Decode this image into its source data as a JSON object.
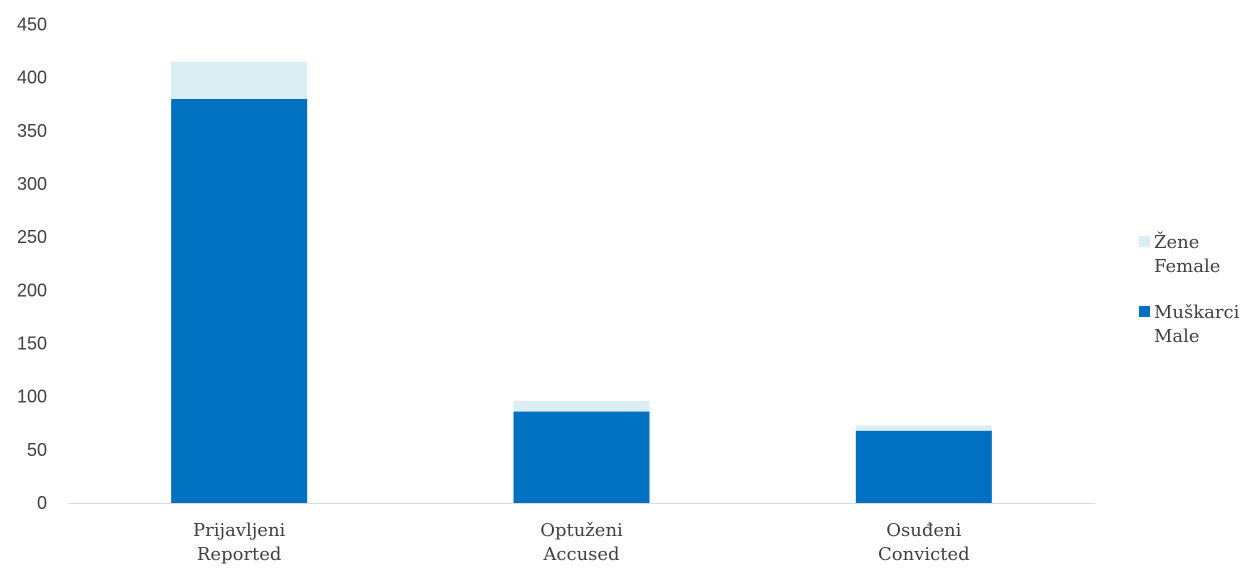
{
  "chart_data": {
    "type": "bar",
    "stacked": true,
    "categories": [
      [
        "Prijavljeni",
        "Reported"
      ],
      [
        "Optuženi",
        "Accused"
      ],
      [
        "Osuđeni",
        "Convicted"
      ]
    ],
    "series": [
      {
        "name": [
          "Muškarci",
          "Male"
        ],
        "values": [
          380,
          86,
          68
        ],
        "color": "#0070C0"
      },
      {
        "name": [
          "Žene",
          "Female"
        ],
        "values": [
          35,
          10,
          5
        ],
        "color": "#DAEEF3"
      }
    ],
    "ylim": [
      0,
      450
    ],
    "yticks": [
      0,
      50,
      100,
      150,
      200,
      250,
      300,
      350,
      400,
      450
    ],
    "grid": false,
    "legend_position": "right",
    "axis_color": "#D9D9D9"
  }
}
